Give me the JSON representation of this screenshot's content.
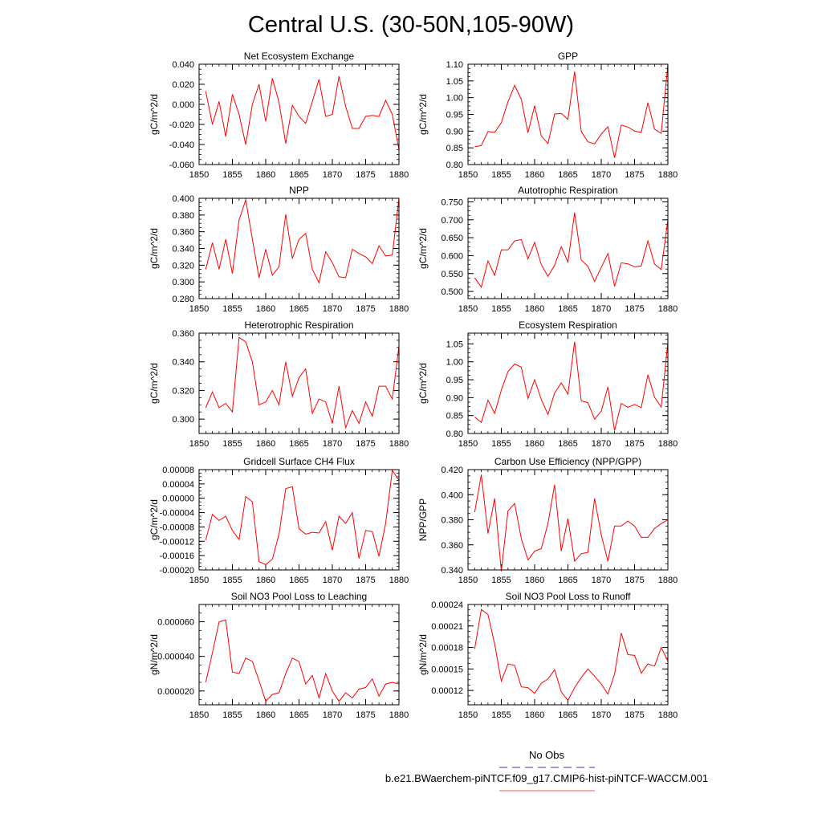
{
  "figure": {
    "title": "Central U.S. (30-50N,105-90W)",
    "legend": {
      "entries": [
        {
          "label": "No Obs",
          "color": "#3333cc",
          "style": "dashed"
        },
        {
          "label": "b.e21.BWaerchem-piNTCF.f09_g17.CMIP6-hist-piNTCF-WACCM.001",
          "color": "#e06060",
          "style": "solid"
        }
      ]
    }
  },
  "chart_data": [
    {
      "type": "line",
      "title": "Net Ecosystem Exchange",
      "ylabel": "gC/m^2/d",
      "ylim": [
        -0.06,
        0.04
      ],
      "yticks": [
        -0.06,
        -0.04,
        -0.02,
        0.0,
        0.02,
        0.04
      ],
      "ytick_labels": [
        "-0.060",
        "-0.040",
        "-0.020",
        "0.000",
        "0.020",
        "0.040"
      ],
      "xlim": [
        1850,
        1880
      ],
      "xticks": [
        1850,
        1855,
        1860,
        1865,
        1870,
        1875,
        1880
      ],
      "series": [
        {
          "color": "#ff0000",
          "x_start": 1851,
          "values": [
            0.013,
            -0.02,
            0.003,
            -0.032,
            0.01,
            -0.01,
            -0.04,
            0.0,
            0.02,
            -0.017,
            0.026,
            0.002,
            -0.039,
            -0.001,
            -0.012,
            -0.019,
            0.003,
            0.025,
            -0.012,
            -0.01,
            0.028,
            -0.002,
            -0.024,
            -0.024,
            -0.012,
            -0.011,
            -0.012,
            0.004,
            -0.01,
            -0.045
          ]
        }
      ]
    },
    {
      "type": "line",
      "title": "GPP",
      "ylabel": "gC/m^2/d",
      "ylim": [
        0.8,
        1.1
      ],
      "yticks": [
        0.8,
        0.85,
        0.9,
        0.95,
        1.0,
        1.05,
        1.1
      ],
      "ytick_labels": [
        "0.80",
        "0.85",
        "0.90",
        "0.95",
        "1.00",
        "1.05",
        "1.10"
      ],
      "xlim": [
        1850,
        1880
      ],
      "xticks": [
        1850,
        1855,
        1860,
        1865,
        1870,
        1875,
        1880
      ],
      "series": [
        {
          "color": "#ff0000",
          "x_start": 1851,
          "values": [
            0.853,
            0.857,
            0.899,
            0.896,
            0.925,
            0.988,
            1.037,
            0.995,
            0.895,
            0.976,
            0.886,
            0.863,
            0.951,
            0.953,
            0.935,
            1.078,
            0.899,
            0.868,
            0.862,
            0.891,
            0.913,
            0.82,
            0.918,
            0.912,
            0.9,
            0.896,
            0.985,
            0.906,
            0.893,
            1.1
          ]
        }
      ]
    },
    {
      "type": "line",
      "title": "NPP",
      "ylabel": "gC/m^2/d",
      "ylim": [
        0.28,
        0.4
      ],
      "yticks": [
        0.28,
        0.3,
        0.32,
        0.34,
        0.36,
        0.38,
        0.4
      ],
      "ytick_labels": [
        "0.280",
        "0.300",
        "0.320",
        "0.340",
        "0.360",
        "0.380",
        "0.400"
      ],
      "xlim": [
        1850,
        1880
      ],
      "xticks": [
        1850,
        1855,
        1860,
        1865,
        1870,
        1875,
        1880
      ],
      "series": [
        {
          "color": "#ff0000",
          "x_start": 1851,
          "values": [
            0.315,
            0.347,
            0.315,
            0.351,
            0.31,
            0.374,
            0.398,
            0.351,
            0.305,
            0.339,
            0.308,
            0.318,
            0.381,
            0.328,
            0.351,
            0.358,
            0.315,
            0.299,
            0.336,
            0.323,
            0.306,
            0.305,
            0.339,
            0.334,
            0.33,
            0.322,
            0.343,
            0.331,
            0.332,
            0.4
          ]
        }
      ]
    },
    {
      "type": "line",
      "title": "Autotrophic Respiration",
      "ylabel": "gC/m^2/d",
      "ylim": [
        0.48,
        0.76
      ],
      "yticks": [
        0.5,
        0.55,
        0.6,
        0.65,
        0.7,
        0.75
      ],
      "ytick_labels": [
        "0.500",
        "0.550",
        "0.600",
        "0.650",
        "0.700",
        "0.750"
      ],
      "xlim": [
        1850,
        1880
      ],
      "xticks": [
        1850,
        1855,
        1860,
        1865,
        1870,
        1875,
        1880
      ],
      "series": [
        {
          "color": "#ff0000",
          "x_start": 1851,
          "values": [
            0.538,
            0.512,
            0.585,
            0.545,
            0.616,
            0.616,
            0.641,
            0.645,
            0.591,
            0.637,
            0.575,
            0.542,
            0.573,
            0.625,
            0.582,
            0.72,
            0.588,
            0.57,
            0.528,
            0.567,
            0.606,
            0.514,
            0.58,
            0.577,
            0.569,
            0.571,
            0.641,
            0.576,
            0.561,
            0.7
          ]
        }
      ]
    },
    {
      "type": "line",
      "title": "Heterotrophic Respiration",
      "ylabel": "gC/m^2/d",
      "ylim": [
        0.29,
        0.36
      ],
      "yticks": [
        0.3,
        0.32,
        0.34,
        0.36
      ],
      "ytick_labels": [
        "0.300",
        "0.320",
        "0.340",
        "0.360"
      ],
      "xlim": [
        1850,
        1880
      ],
      "xticks": [
        1850,
        1855,
        1860,
        1865,
        1870,
        1875,
        1880
      ],
      "series": [
        {
          "color": "#ff0000",
          "x_start": 1851,
          "values": [
            0.308,
            0.319,
            0.308,
            0.311,
            0.305,
            0.357,
            0.354,
            0.34,
            0.31,
            0.312,
            0.32,
            0.31,
            0.34,
            0.316,
            0.329,
            0.335,
            0.304,
            0.314,
            0.312,
            0.297,
            0.323,
            0.294,
            0.306,
            0.297,
            0.312,
            0.302,
            0.323,
            0.323,
            0.314,
            0.351
          ]
        }
      ]
    },
    {
      "type": "line",
      "title": "Ecosystem Respiration",
      "ylabel": "gC/m^2/d",
      "ylim": [
        0.8,
        1.08
      ],
      "yticks": [
        0.8,
        0.85,
        0.9,
        0.95,
        1.0,
        1.05
      ],
      "ytick_labels": [
        "0.80",
        "0.85",
        "0.90",
        "0.95",
        "1.00",
        "1.05"
      ],
      "xlim": [
        1850,
        1880
      ],
      "xticks": [
        1850,
        1855,
        1860,
        1865,
        1870,
        1875,
        1880
      ],
      "series": [
        {
          "color": "#ff0000",
          "x_start": 1851,
          "values": [
            0.846,
            0.831,
            0.893,
            0.856,
            0.921,
            0.973,
            0.994,
            0.985,
            0.898,
            0.95,
            0.895,
            0.853,
            0.913,
            0.941,
            0.91,
            1.056,
            0.891,
            0.886,
            0.84,
            0.862,
            0.93,
            0.808,
            0.884,
            0.873,
            0.881,
            0.872,
            0.964,
            0.901,
            0.874,
            1.055
          ]
        }
      ]
    },
    {
      "type": "line",
      "title": "Gridcell Surface CH4 Flux",
      "ylabel": "gC/m^2/d",
      "ylim": [
        -0.0002,
        8e-05
      ],
      "yticks": [
        -0.0002,
        -0.00016,
        -0.00012,
        -8e-05,
        -4e-05,
        0.0,
        4e-05,
        8e-05
      ],
      "ytick_labels": [
        "-0.00020",
        "-0.00016",
        "-0.00012",
        "-0.00008",
        "-0.00004",
        "0.00000",
        "0.00004",
        "0.00008"
      ],
      "xlim": [
        1850,
        1880
      ],
      "xticks": [
        1850,
        1855,
        1860,
        1865,
        1870,
        1875,
        1880
      ],
      "series": [
        {
          "color": "#ff0000",
          "x_start": 1851,
          "values": [
            -0.000117,
            -4.5e-05,
            -6.2e-05,
            -5e-05,
            -9e-05,
            -0.000115,
            5e-06,
            -1e-05,
            -0.000177,
            -0.000185,
            -0.00017,
            -0.0001,
            2.7e-05,
            3.2e-05,
            -8.5e-05,
            -0.0001,
            -9.5e-05,
            -9.7e-05,
            -6.5e-05,
            -0.000145,
            -5e-05,
            -7e-05,
            -4e-05,
            -0.000168,
            -9e-05,
            -9.3e-05,
            -0.000162,
            -7e-05,
            7.8e-05,
            5e-05
          ]
        }
      ]
    },
    {
      "type": "line",
      "title": "Carbon Use Efficiency (NPP/GPP)",
      "ylabel": "NPP/GPP",
      "ylim": [
        0.34,
        0.42
      ],
      "yticks": [
        0.34,
        0.36,
        0.38,
        0.4,
        0.42
      ],
      "ytick_labels": [
        "0.340",
        "0.360",
        "0.380",
        "0.400",
        "0.420"
      ],
      "xlim": [
        1850,
        1880
      ],
      "xticks": [
        1850,
        1855,
        1860,
        1865,
        1870,
        1875,
        1880
      ],
      "series": [
        {
          "color": "#ff0000",
          "x_start": 1851,
          "values": [
            0.386,
            0.416,
            0.369,
            0.397,
            0.339,
            0.387,
            0.393,
            0.365,
            0.348,
            0.355,
            0.357,
            0.377,
            0.408,
            0.355,
            0.381,
            0.347,
            0.353,
            0.354,
            0.397,
            0.368,
            0.347,
            0.375,
            0.375,
            0.379,
            0.375,
            0.366,
            0.366,
            0.373,
            0.377,
            0.38
          ]
        }
      ]
    },
    {
      "type": "line",
      "title": "Soil NO3 Pool Loss to Leaching",
      "ylabel": "gN/m^2/d",
      "ylim": [
        1.2e-05,
        7e-05
      ],
      "yticks": [
        2e-05,
        4e-05,
        6e-05
      ],
      "ytick_labels": [
        "0.000020",
        "0.000040",
        "0.000060"
      ],
      "xlim": [
        1850,
        1880
      ],
      "xticks": [
        1850,
        1855,
        1860,
        1865,
        1870,
        1875,
        1880
      ],
      "series": [
        {
          "color": "#ff0000",
          "x_start": 1851,
          "values": [
            2.5e-05,
            4.2e-05,
            6e-05,
            6.1e-05,
            3.1e-05,
            3e-05,
            3.9e-05,
            3.7e-05,
            2.6e-05,
            1.4e-05,
            1.8e-05,
            1.9e-05,
            3e-05,
            3.9e-05,
            3.7e-05,
            2.4e-05,
            2.9e-05,
            1.6e-05,
            3e-05,
            2e-05,
            1.4e-05,
            1.9e-05,
            1.6e-05,
            2.1e-05,
            2.2e-05,
            2.7e-05,
            1.7e-05,
            2.4e-05,
            2.5e-05,
            2.4e-05
          ]
        }
      ]
    },
    {
      "type": "line",
      "title": "Soil NO3 Pool Loss to Runoff",
      "ylabel": "gN/m^2/d",
      "ylim": [
        0.0001,
        0.00024
      ],
      "yticks": [
        0.00012,
        0.00015,
        0.00018,
        0.00021,
        0.00024
      ],
      "ytick_labels": [
        "0.00012",
        "0.00015",
        "0.00018",
        "0.00021",
        "0.00024"
      ],
      "xlim": [
        1850,
        1880
      ],
      "xticks": [
        1850,
        1855,
        1860,
        1865,
        1870,
        1875,
        1880
      ],
      "series": [
        {
          "color": "#ff0000",
          "x_start": 1851,
          "values": [
            0.000178,
            0.000233,
            0.000226,
            0.000185,
            0.000133,
            0.000157,
            0.000155,
            0.000125,
            0.000124,
            0.000116,
            0.00013,
            0.000136,
            0.000149,
            0.000118,
            0.000106,
            0.000124,
            0.000138,
            0.00015,
            0.00014,
            0.000129,
            0.000115,
            0.000143,
            0.0002,
            0.00017,
            0.000169,
            0.000144,
            0.000157,
            0.000154,
            0.00018,
            0.000161
          ]
        }
      ]
    }
  ]
}
